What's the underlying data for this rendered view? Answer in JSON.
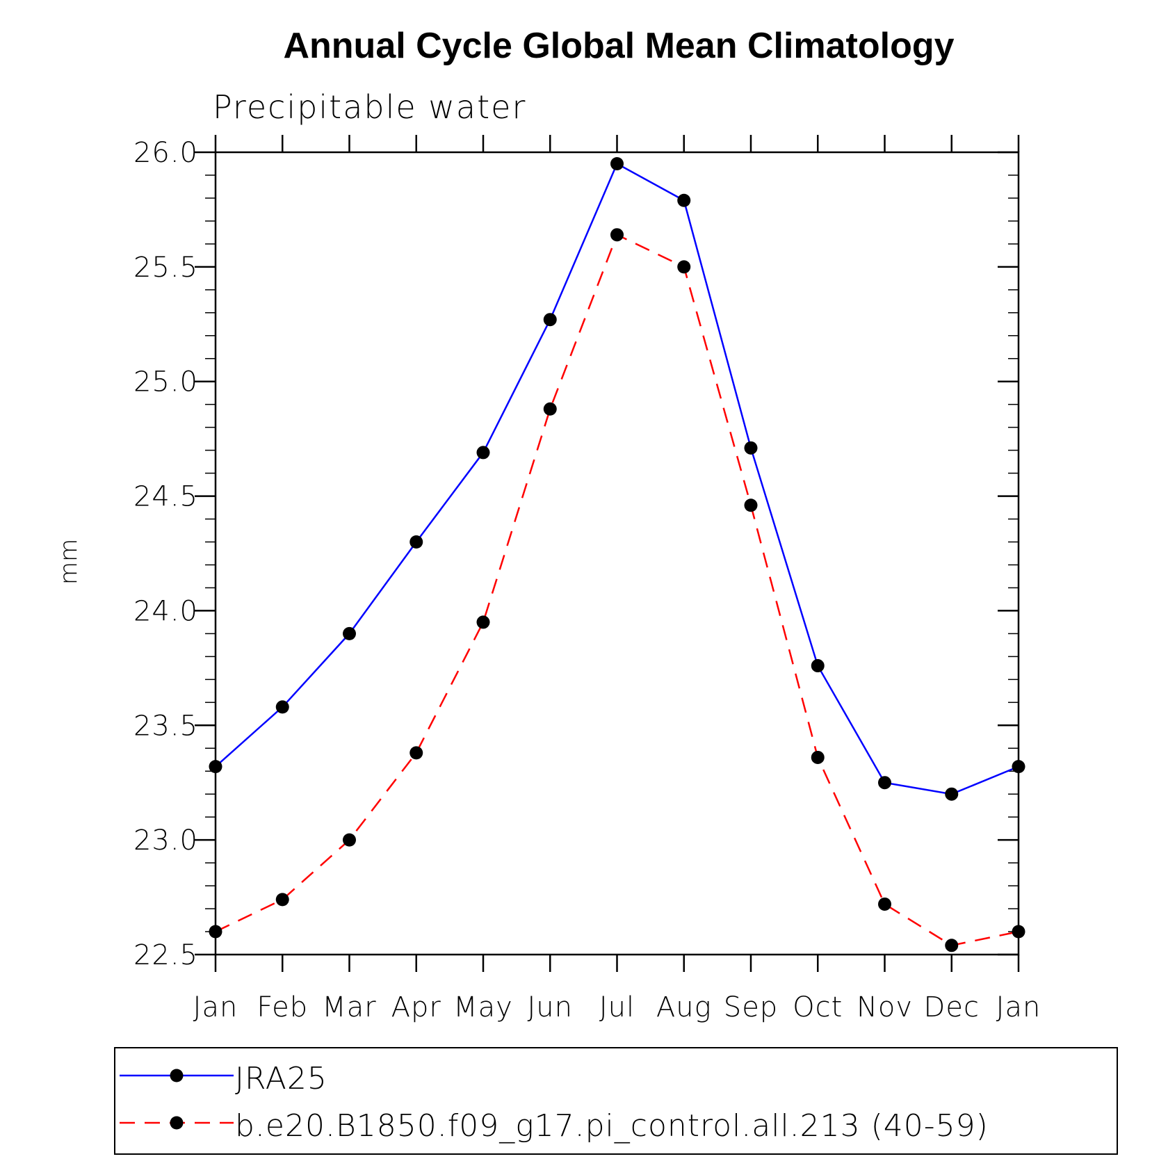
{
  "chart_data": {
    "type": "line",
    "title": "Annual Cycle Global Mean Climatology",
    "subtitle": "Precipitable water",
    "xlabel": "",
    "ylabel": "mm",
    "categories": [
      "Jan",
      "Feb",
      "Mar",
      "Apr",
      "May",
      "Jun",
      "Jul",
      "Aug",
      "Sep",
      "Oct",
      "Nov",
      "Dec",
      "Jan"
    ],
    "ylim": [
      22.5,
      26.0
    ],
    "yticks": [
      "22.5",
      "23.0",
      "23.5",
      "24.0",
      "24.5",
      "25.0",
      "25.5",
      "26.0"
    ],
    "grid": false,
    "legend_position": "bottom",
    "series": [
      {
        "name": "JRA25",
        "color": "#0000ff",
        "line_style": "solid",
        "marker": "filled-circle",
        "values": [
          23.32,
          23.58,
          23.9,
          24.3,
          24.69,
          25.27,
          25.95,
          25.79,
          24.71,
          23.76,
          23.25,
          23.2,
          23.32
        ]
      },
      {
        "name": "b.e20.B1850.f09_g17.pi_control.all.213 (40-59)",
        "color": "#ff0000",
        "line_style": "dashed",
        "marker": "filled-circle",
        "values": [
          22.6,
          22.74,
          23.0,
          23.38,
          23.95,
          24.88,
          25.64,
          25.5,
          24.46,
          23.36,
          22.72,
          22.54,
          22.6
        ]
      }
    ]
  }
}
